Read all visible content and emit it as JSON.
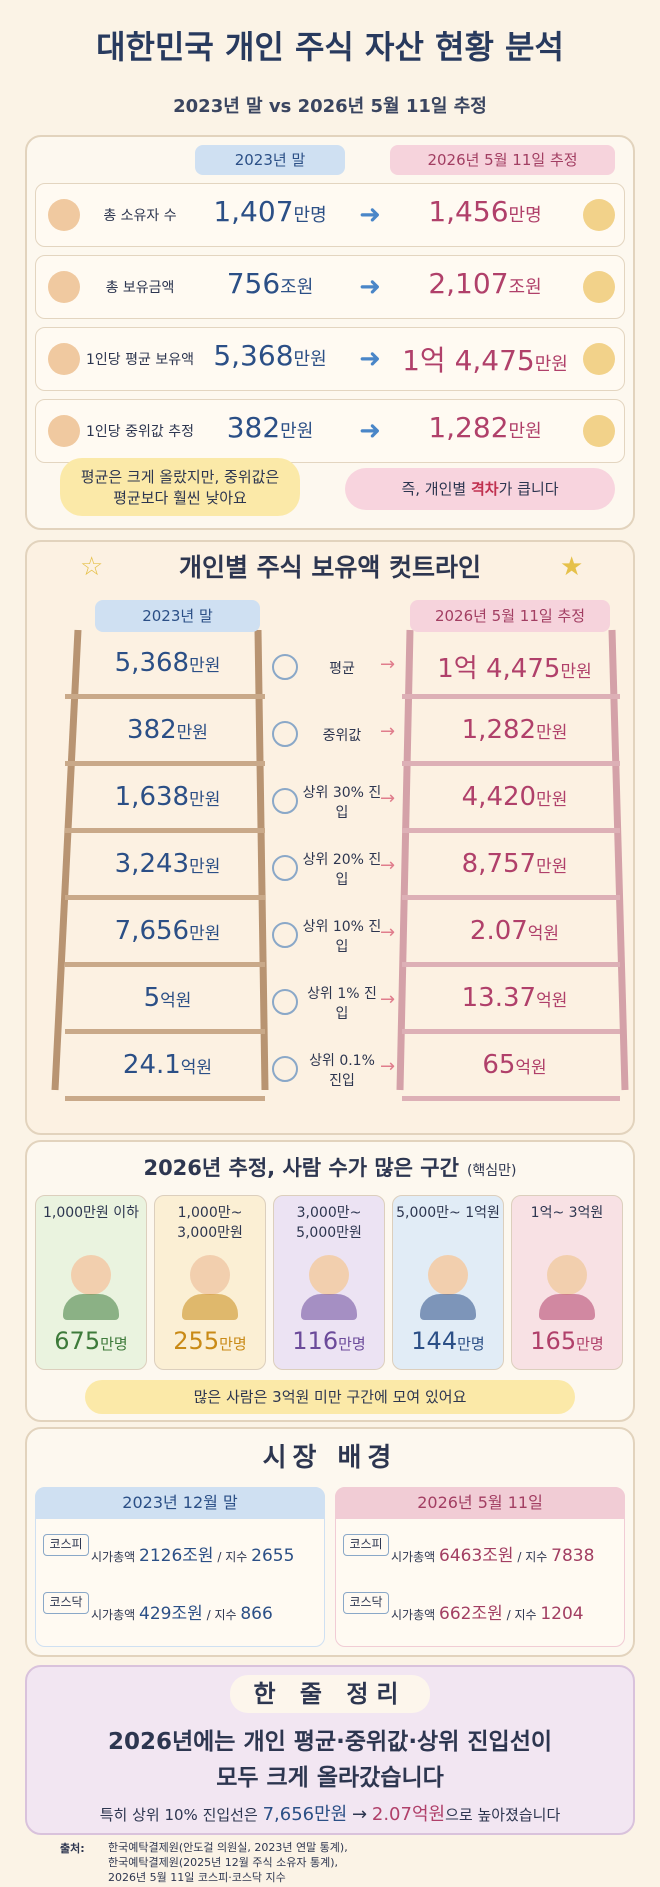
{
  "header": {
    "title": "대한민국 개인 주식 자산 현황 분석",
    "subtitle": "2023년 말 vs 2026년 5월 11일 추정"
  },
  "summary": {
    "headers": [
      "2023년 말",
      "2026년 5월 11일 추정"
    ],
    "rows": [
      {
        "label": "총 소유자 수",
        "before": {
          "num": "1,407",
          "unit": "만명"
        },
        "after": {
          "num": "1,456",
          "unit": "만명"
        }
      },
      {
        "label": "총 보유금액",
        "before": {
          "num": "756",
          "unit": "조원"
        },
        "after": {
          "num": "2,107",
          "unit": "조원"
        }
      },
      {
        "label": "1인당 평균 보유액",
        "before": {
          "num": "5,368",
          "unit": "만원"
        },
        "after": {
          "num": "1억 4,475",
          "unit": "만원"
        }
      },
      {
        "label": "1인당 중위값 추정",
        "before": {
          "num": "382",
          "unit": "만원"
        },
        "after": {
          "num": "1,282",
          "unit": "만원"
        }
      }
    ],
    "notes": [
      "평균은 크게 올랐지만, 중위값은 평균보다 훨씬 낮아요",
      {
        "pre": "즉, 개인별 ",
        "em": "격차",
        "post": "가 큽니다"
      }
    ]
  },
  "cutline": {
    "title": "개인별 주식 보유액 컷트라인",
    "headers": [
      "2023년 말",
      "2026년 5월 11일 추정"
    ],
    "rows": [
      {
        "label": "평균",
        "before": {
          "num": "5,368",
          "unit": "만원"
        },
        "after": {
          "num": "1억 4,475",
          "unit": "만원"
        }
      },
      {
        "label": "중위값",
        "before": {
          "num": "382",
          "unit": "만원"
        },
        "after": {
          "num": "1,282",
          "unit": "만원"
        }
      },
      {
        "label": "상위 30% 진입",
        "before": {
          "num": "1,638",
          "unit": "만원"
        },
        "after": {
          "num": "4,420",
          "unit": "만원"
        }
      },
      {
        "label": "상위 20% 진입",
        "before": {
          "num": "3,243",
          "unit": "만원"
        },
        "after": {
          "num": "8,757",
          "unit": "만원"
        }
      },
      {
        "label": "상위 10% 진입",
        "before": {
          "num": "7,656",
          "unit": "만원"
        },
        "after": {
          "num": "2.07",
          "unit": "억원"
        }
      },
      {
        "label": "상위 1% 진입",
        "before": {
          "num": "5",
          "unit": "억원"
        },
        "after": {
          "num": "13.37",
          "unit": "억원"
        }
      },
      {
        "label": "상위 0.1% 진입",
        "before": {
          "num": "24.1",
          "unit": "억원"
        },
        "after": {
          "num": "65",
          "unit": "억원"
        }
      }
    ]
  },
  "groups": {
    "title": "2026년 추정, 사람 수가 많은 구간",
    "tag": "(핵심만)",
    "items": [
      {
        "label": "1,000만원 이하",
        "num": "675",
        "unit": "만명"
      },
      {
        "label": "1,000만~ 3,000만원",
        "num": "255",
        "unit": "만명"
      },
      {
        "label": "3,000만~ 5,000만원",
        "num": "116",
        "unit": "만명"
      },
      {
        "label": "5,000만~ 1억원",
        "num": "144",
        "unit": "만명"
      },
      {
        "label": "1억~ 3억원",
        "num": "165",
        "unit": "만명"
      }
    ],
    "note": "많은 사람은 3억원 미만 구간에 모여 있어요"
  },
  "market": {
    "title": "시장 배경",
    "panels": [
      {
        "title": "2023년 12월 말",
        "rows": [
          {
            "index": "코스피",
            "cap_label": "시가총액",
            "cap": "2126조원",
            "sep": "/",
            "idx_label": "지수",
            "idx": "2655"
          },
          {
            "index": "코스닥",
            "cap_label": "시가총액",
            "cap": "429조원",
            "sep": "/",
            "idx_label": "지수",
            "idx": "866"
          }
        ]
      },
      {
        "title": "2026년 5월 11일",
        "rows": [
          {
            "index": "코스피",
            "cap_label": "시가총액",
            "cap": "6463조원",
            "sep": "/",
            "idx_label": "지수",
            "idx": "7838"
          },
          {
            "index": "코스닥",
            "cap_label": "시가총액",
            "cap": "662조원",
            "sep": "/",
            "idx_label": "지수",
            "idx": "1204"
          }
        ]
      }
    ]
  },
  "conclusion": {
    "title": "한 줄 정리",
    "headline": [
      "2026년에는 개인 평균·중위값·상위 진입선이",
      "모두 크게 올라갔습니다"
    ],
    "detail": {
      "pre": "특히 상위 10% 진입선은",
      "from": "7,656만원",
      "arrow": "→",
      "to": "2.07억원",
      "post": "으로 높아졌습니다"
    }
  },
  "footer": {
    "label": "출처:",
    "lines": [
      "한국예탁결제원(안도걸 의원실, 2023년 연말 통계),",
      "한국예탁결제원(2025년 12월 주식 소유자 통계),",
      "2026년 5월 11일 코스피·코스닥 지수"
    ]
  }
}
